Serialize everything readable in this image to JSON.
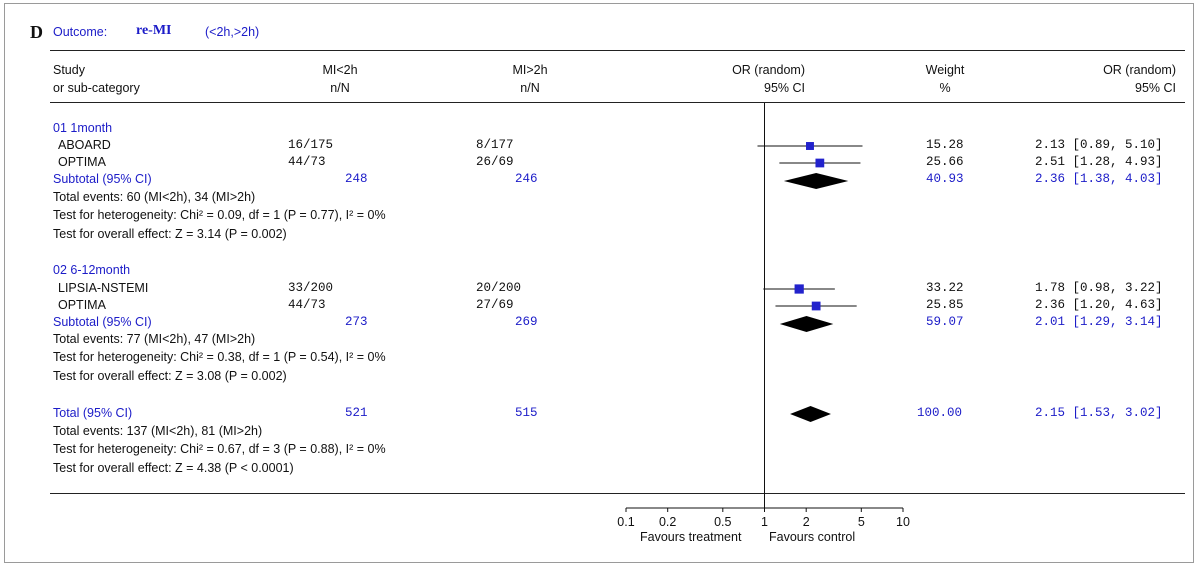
{
  "panel": {
    "letter": "D",
    "outcome_label": "Outcome:",
    "outcome_name": "re-MI",
    "outcome_groups": "(<2h,>2h)"
  },
  "headers": {
    "study": "Study",
    "study_sub": "or sub-category",
    "group1": "MI<2h",
    "group1_sub": "n/N",
    "group2": "MI>2h",
    "group2_sub": "n/N",
    "plot": "OR (random)",
    "plot_sub": "95% CI",
    "weight": "Weight",
    "weight_sub": "%",
    "or": "OR (random)",
    "or_sub": "95% CI"
  },
  "groups": [
    {
      "title": "01 1month",
      "studies": [
        {
          "name": "ABOARD",
          "g1": "16/175",
          "g2": "8/177",
          "weight": "15.28",
          "or_text": "2.13 [0.89, 5.10]",
          "or": 2.13,
          "lo": 0.89,
          "hi": 5.1
        },
        {
          "name": "OPTIMA",
          "g1": "44/73",
          "g2": "26/69",
          "weight": "25.66",
          "or_text": "2.51 [1.28, 4.93]",
          "or": 2.51,
          "lo": 1.28,
          "hi": 4.93
        }
      ],
      "subtotal": {
        "label": "Subtotal (95% CI)",
        "n1": "248",
        "n2": "246",
        "weight": "40.93",
        "or_text": "2.36 [1.38, 4.03]",
        "or": 2.36,
        "lo": 1.38,
        "hi": 4.03
      },
      "events": "Total events: 60 (MI<2h), 34 (MI>2h)",
      "heterogeneity": "Test for heterogeneity: Chi² = 0.09, df = 1 (P = 0.77), I² = 0%",
      "overall": "Test for overall effect: Z = 3.14 (P = 0.002)"
    },
    {
      "title": "02 6-12month",
      "studies": [
        {
          "name": "LIPSIA-NSTEMI",
          "g1": "33/200",
          "g2": "20/200",
          "weight": "33.22",
          "or_text": "1.78 [0.98, 3.22]",
          "or": 1.78,
          "lo": 0.98,
          "hi": 3.22
        },
        {
          "name": "OPTIMA",
          "g1": "44/73",
          "g2": "27/69",
          "weight": "25.85",
          "or_text": "2.36 [1.20, 4.63]",
          "or": 2.36,
          "lo": 1.2,
          "hi": 4.63
        }
      ],
      "subtotal": {
        "label": "Subtotal (95% CI)",
        "n1": "273",
        "n2": "269",
        "weight": "59.07",
        "or_text": "2.01 [1.29, 3.14]",
        "or": 2.01,
        "lo": 1.29,
        "hi": 3.14
      },
      "events": "Total events: 77 (MI<2h), 47 (MI>2h)",
      "heterogeneity": "Test for heterogeneity: Chi² = 0.38, df = 1 (P = 0.54), I² = 0%",
      "overall": "Test for overall effect: Z = 3.08 (P = 0.002)"
    }
  ],
  "total": {
    "label": "Total (95% CI)",
    "n1": "521",
    "n2": "515",
    "weight": "100.00",
    "or_text": "2.15 [1.53, 3.02]",
    "or": 2.15,
    "lo": 1.53,
    "hi": 3.02,
    "events": "Total events: 137 (MI<2h), 81 (MI>2h)",
    "heterogeneity": "Test for heterogeneity: Chi² = 0.67, df = 3 (P = 0.88), I² = 0%",
    "overall": "Test for overall effect: Z = 4.38 (P < 0.0001)"
  },
  "axis": {
    "ticks": [
      {
        "value": 0.1,
        "label": "0.1"
      },
      {
        "value": 0.2,
        "label": "0.2"
      },
      {
        "value": 0.5,
        "label": "0.5"
      },
      {
        "value": 1,
        "label": "1"
      },
      {
        "value": 2,
        "label": "2"
      },
      {
        "value": 5,
        "label": "5"
      },
      {
        "value": 10,
        "label": "10"
      }
    ],
    "favours_left": "Favours treatment",
    "favours_right": "Favours control"
  },
  "colors": {
    "text_blue": "#1c1cc8",
    "marker": "#2222cc",
    "ink": "#111111"
  },
  "chart_data": {
    "type": "forest",
    "title": "Outcome: re-MI (<2h,>2h)",
    "xlabel": "OR (random) 95% CI",
    "scale": "log",
    "xlim": [
      0.1,
      10
    ],
    "reference_line": 1,
    "series": [
      {
        "name": "ABOARD (1month)",
        "or": 2.13,
        "ci": [
          0.89,
          5.1
        ],
        "weight": 15.28
      },
      {
        "name": "OPTIMA (1month)",
        "or": 2.51,
        "ci": [
          1.28,
          4.93
        ],
        "weight": 25.66
      },
      {
        "name": "Subtotal 1month",
        "or": 2.36,
        "ci": [
          1.38,
          4.03
        ],
        "weight": 40.93
      },
      {
        "name": "LIPSIA-NSTEMI (6-12month)",
        "or": 1.78,
        "ci": [
          0.98,
          3.22
        ],
        "weight": 33.22
      },
      {
        "name": "OPTIMA (6-12month)",
        "or": 2.36,
        "ci": [
          1.2,
          4.63
        ],
        "weight": 25.85
      },
      {
        "name": "Subtotal 6-12month",
        "or": 2.01,
        "ci": [
          1.29,
          3.14
        ],
        "weight": 59.07
      },
      {
        "name": "Total",
        "or": 2.15,
        "ci": [
          1.53,
          3.02
        ],
        "weight": 100.0
      }
    ]
  }
}
